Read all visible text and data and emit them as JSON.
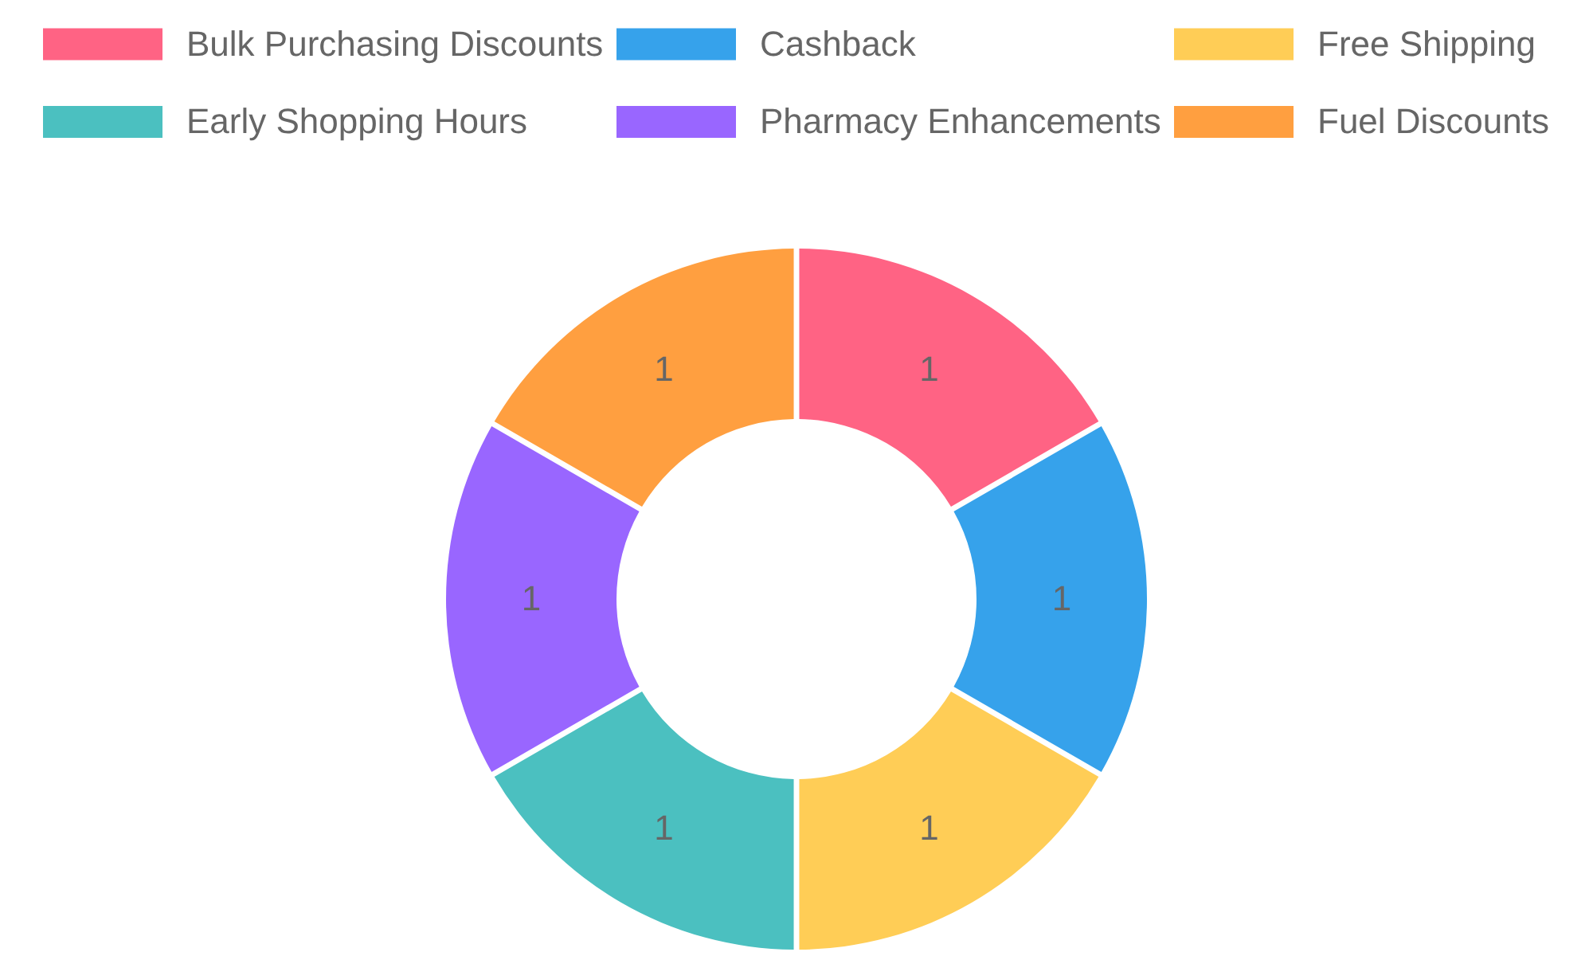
{
  "chart_data": {
    "type": "donut",
    "categories": [
      "Bulk Purchasing Discounts",
      "Cashback",
      "Free Shipping",
      "Early Shopping Hours",
      "Pharmacy Enhancements",
      "Fuel Discounts"
    ],
    "values": [
      1,
      1,
      1,
      1,
      1,
      1
    ],
    "colors": [
      "#ff6384",
      "#36a2eb",
      "#ffcd56",
      "#4bc0c0",
      "#9966ff",
      "#ff9f40"
    ],
    "data_labels": true,
    "legend": "top"
  }
}
